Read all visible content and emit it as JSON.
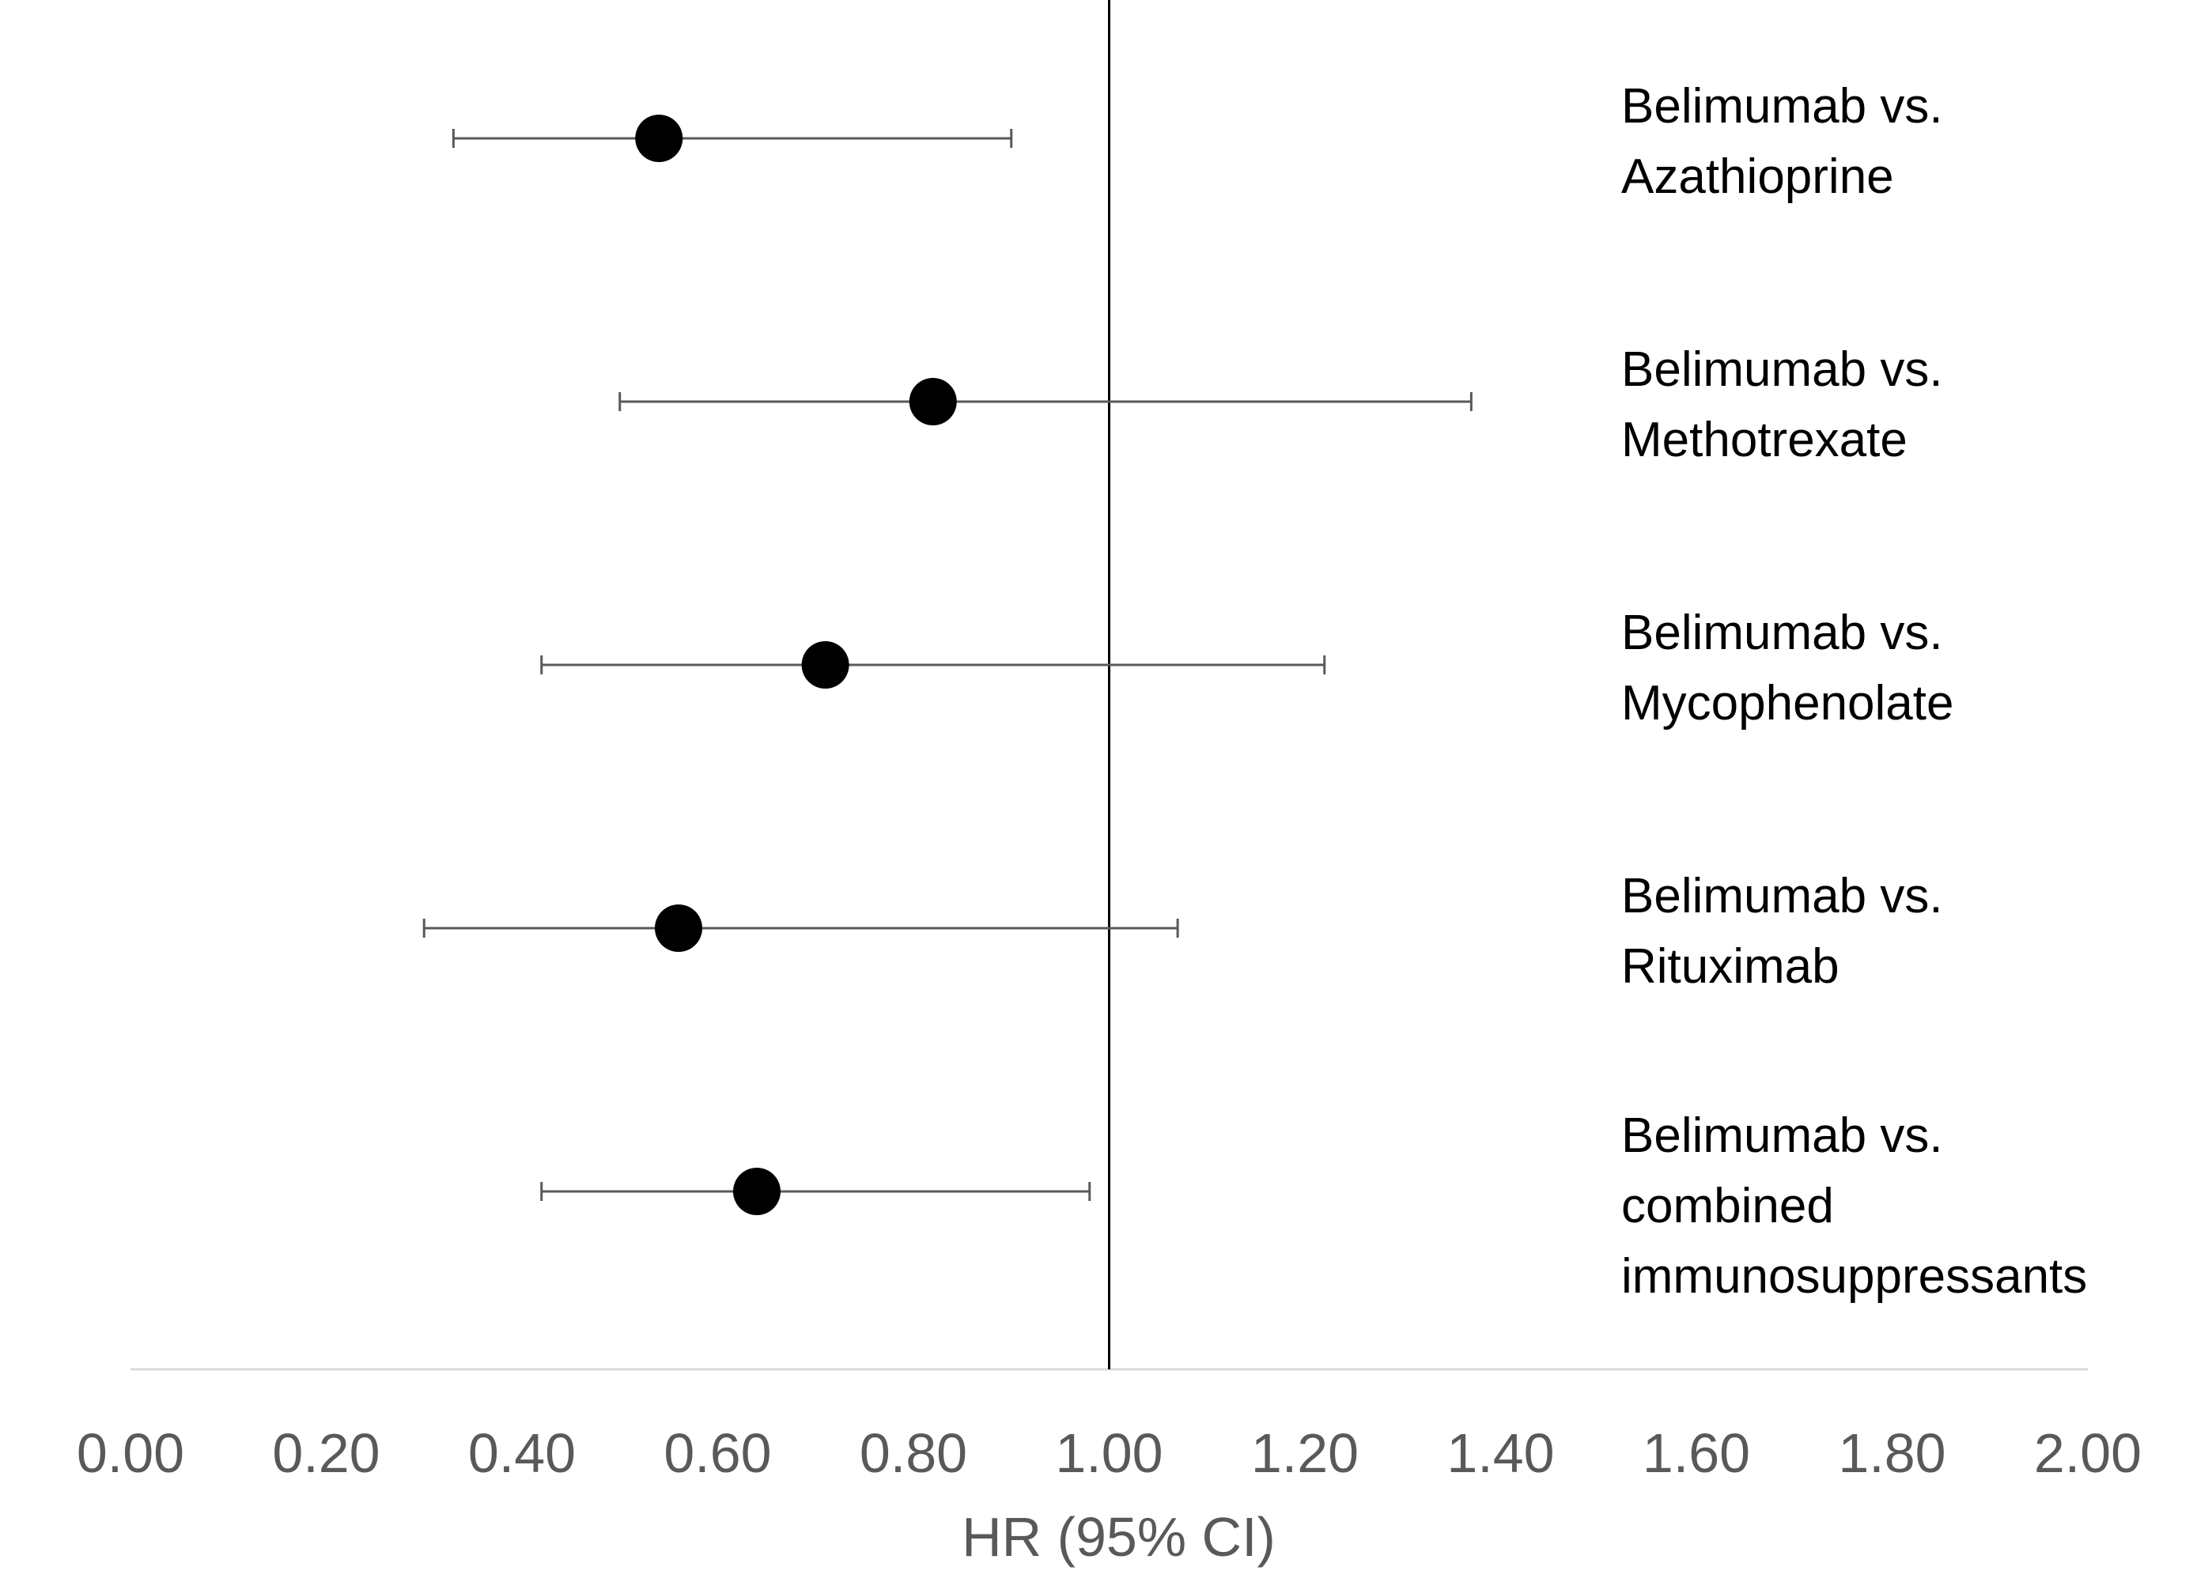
{
  "chart_data": {
    "type": "scatter",
    "subtype": "forest-plot",
    "title": "",
    "xlabel": "HR (95% CI)",
    "ylabel": "",
    "xlim": [
      0,
      2
    ],
    "x_ticks": [
      "0.00",
      "0.20",
      "0.40",
      "0.60",
      "0.80",
      "1.00",
      "1.20",
      "1.40",
      "1.60",
      "1.80",
      "2.00"
    ],
    "reference_line": 1.0,
    "grid": false,
    "legend": "none",
    "rows": [
      {
        "label_lines": [
          "Belimumab vs.",
          "Azathioprine"
        ],
        "hr": 0.54,
        "ci_low": 0.33,
        "ci_high": 0.9
      },
      {
        "label_lines": [
          "Belimumab vs.",
          "Methotrexate"
        ],
        "hr": 0.82,
        "ci_low": 0.5,
        "ci_high": 1.37
      },
      {
        "label_lines": [
          "Belimumab vs.",
          "Mycophenolate"
        ],
        "hr": 0.71,
        "ci_low": 0.42,
        "ci_high": 1.22
      },
      {
        "label_lines": [
          "Belimumab vs.",
          "Rituximab"
        ],
        "hr": 0.56,
        "ci_low": 0.3,
        "ci_high": 1.07
      },
      {
        "label_lines": [
          "Belimumab vs.",
          "combined",
          "immunosuppressants"
        ],
        "hr": 0.64,
        "ci_low": 0.42,
        "ci_high": 0.98
      }
    ],
    "colors": {
      "marker": "#000000",
      "ci_line": "#595959",
      "reference_line": "#000000",
      "axis_line": "#d9d9d9",
      "tick_text": "#595959",
      "label_text": "#000000"
    }
  }
}
